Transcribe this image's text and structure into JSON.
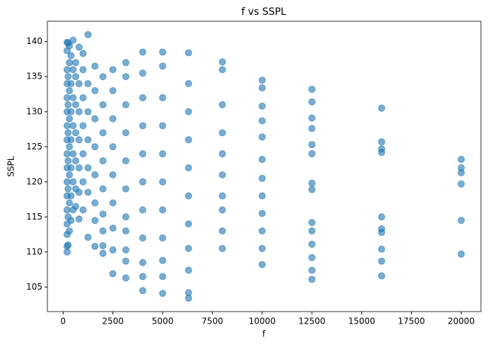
{
  "chart_data": {
    "type": "scatter",
    "title": "f vs SSPL",
    "x_label": "f",
    "y_label": "SSPL",
    "color": "#1f77b4",
    "xlim": [
      -790,
      20990
    ],
    "ylim": [
      101.5,
      142.9
    ],
    "xticks": [
      0,
      2500,
      5000,
      7500,
      10000,
      12500,
      15000,
      17500,
      20000
    ],
    "yticks": [
      105,
      110,
      115,
      120,
      125,
      130,
      135,
      140
    ],
    "grid": false,
    "x": [
      200,
      200,
      200,
      200,
      200,
      200,
      200,
      200,
      200,
      200,
      200,
      200,
      200,
      200,
      200,
      200,
      200,
      250,
      250,
      250,
      250,
      250,
      250,
      250,
      250,
      315,
      315,
      315,
      315,
      315,
      315,
      315,
      315,
      400,
      400,
      400,
      400,
      400,
      400,
      400,
      500,
      500,
      500,
      500,
      500,
      500,
      500,
      630,
      630,
      630,
      630,
      630,
      630,
      630,
      800,
      800,
      800,
      800,
      800,
      800,
      800,
      1000,
      1000,
      1000,
      1000,
      1000,
      1000,
      1000,
      1250,
      1250,
      1250,
      1250,
      1250,
      1250,
      1250,
      1600,
      1600,
      1600,
      1600,
      1600,
      1600,
      1600,
      1600,
      2000,
      2000,
      2000,
      2000,
      2000,
      2000,
      2000,
      2000,
      2000,
      2500,
      2500,
      2500,
      2500,
      2500,
      2500,
      2500,
      2500,
      2500,
      3150,
      3150,
      3150,
      3150,
      3150,
      3150,
      3150,
      3150,
      3150,
      3150,
      3150,
      4000,
      4000,
      4000,
      4000,
      4000,
      4000,
      4000,
      4000,
      4000,
      4000,
      4000,
      5000,
      5000,
      5000,
      5000,
      5000,
      5000,
      5000,
      5000,
      5000,
      5000,
      5000,
      6300,
      6300,
      6300,
      6300,
      6300,
      6300,
      6300,
      6300,
      6300,
      6300,
      6300,
      8000,
      8000,
      8000,
      8000,
      8000,
      8000,
      8000,
      8000,
      8000,
      8000,
      10000,
      10000,
      10000,
      10000,
      10000,
      10000,
      10000,
      10000,
      10000,
      10000,
      10000,
      10000,
      12500,
      12500,
      12500,
      12500,
      12500,
      12500,
      12500,
      12500,
      12500,
      12500,
      12500,
      12500,
      12500,
      12500,
      16000,
      16000,
      16000,
      16000,
      16000,
      16000,
      16000,
      16000,
      16000,
      16000,
      20000,
      20000,
      20000,
      20000,
      20000,
      20000
    ],
    "y": [
      110,
      110.8,
      112.5,
      114,
      116,
      118,
      120,
      122,
      124,
      126,
      128,
      130,
      132,
      134,
      136,
      138.7,
      139.9,
      111,
      115,
      119,
      123,
      127,
      131,
      135,
      139.8,
      113,
      117,
      121,
      125,
      129,
      133,
      137,
      139.4,
      114.5,
      118,
      122,
      126,
      130,
      134,
      138,
      116,
      120,
      124,
      128,
      132,
      136,
      140.2,
      116.5,
      119,
      123,
      127,
      131,
      135,
      137,
      114.7,
      118.5,
      122,
      126,
      130,
      134,
      139.2,
      116,
      120,
      124,
      128,
      132,
      136,
      138.3,
      112.1,
      118.5,
      122,
      126,
      130,
      134,
      141,
      110.8,
      114.5,
      117,
      121,
      125,
      129,
      133,
      136.5,
      109.8,
      110.9,
      113,
      115.4,
      119,
      123,
      127,
      131,
      135,
      106.9,
      110.3,
      113.4,
      117,
      121,
      125,
      129,
      133,
      136,
      106.3,
      108.7,
      110.3,
      113,
      115,
      119,
      123,
      127,
      131,
      135,
      137,
      104.5,
      106.5,
      108.5,
      112,
      116,
      120,
      124,
      128,
      132,
      135.5,
      138.5,
      104.1,
      106.5,
      108.8,
      112,
      116,
      120,
      124,
      128,
      132,
      136.5,
      138.5,
      103.4,
      104.2,
      107.4,
      110.5,
      114,
      118,
      122,
      126,
      130,
      134,
      138.4,
      110.5,
      113,
      116,
      118,
      121,
      124,
      127,
      131,
      136,
      137.1,
      108.2,
      110.5,
      113,
      115.5,
      118,
      120.5,
      123.2,
      126.4,
      128.7,
      130.8,
      133.4,
      134.5,
      106.1,
      107.4,
      109.2,
      111.1,
      113,
      114.2,
      118.9,
      119.8,
      124,
      125.3,
      127.6,
      129.1,
      131.4,
      133.2,
      106.6,
      108.7,
      110.4,
      112.8,
      113.3,
      115,
      124.2,
      124.7,
      125.7,
      130.5,
      109.7,
      114.5,
      119.7,
      121.3,
      122,
      123.2
    ]
  }
}
